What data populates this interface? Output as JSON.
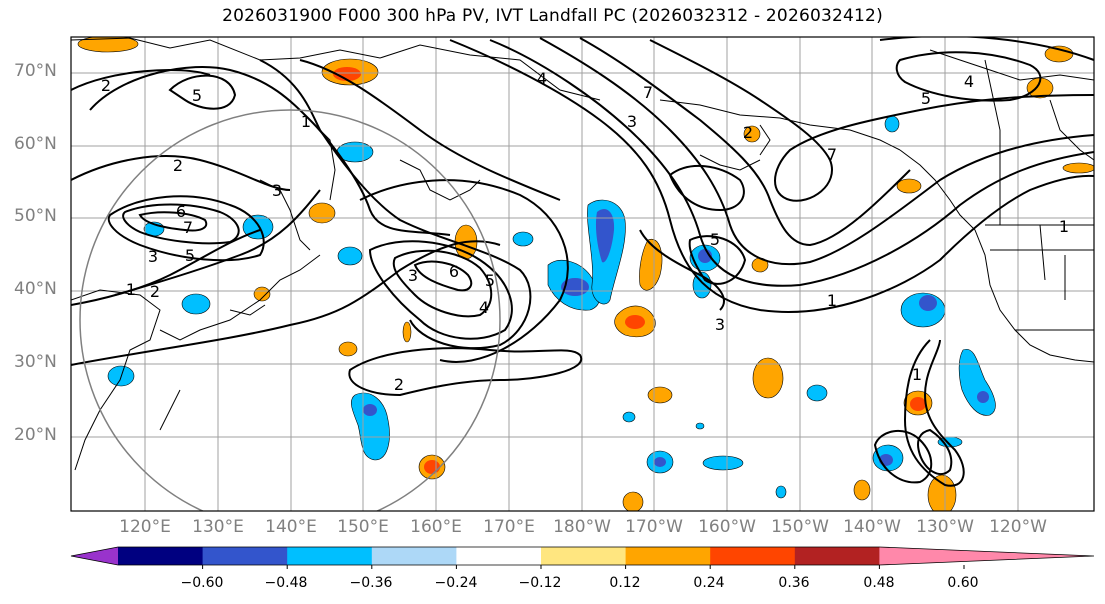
{
  "title": "2026031900 F000 300 hPa PV, IVT Landfall PC (2026032312 - 2026032412)",
  "lat_labels": [
    "70°N",
    "60°N",
    "50°N",
    "40°N",
    "30°N",
    "20°N"
  ],
  "lon_labels": [
    "120°E",
    "130°E",
    "140°E",
    "150°E",
    "160°E",
    "170°E",
    "180°W",
    "170°W",
    "160°W",
    "150°W",
    "140°W",
    "130°W",
    "120°W"
  ],
  "colorbar": {
    "tick_labels": [
      "−0.60",
      "−0.48",
      "−0.36",
      "−0.24",
      "−0.12",
      "0.12",
      "0.24",
      "0.36",
      "0.48",
      "0.60"
    ],
    "colors": [
      "#9933cc",
      "#000080",
      "#3355cc",
      "#00bfff",
      "#add8f7",
      "#ffffff",
      "#ffe680",
      "#ffa500",
      "#ff4500",
      "#b22222",
      "#ff88aa"
    ]
  },
  "contour_labels": [
    "2",
    "5",
    "1",
    "2",
    "6",
    "7",
    "3",
    "5",
    "3",
    "1",
    "2",
    "6",
    "3",
    "5",
    "4",
    "2",
    "4",
    "7",
    "3",
    "5",
    "3",
    "1",
    "7",
    "4",
    "5",
    "1",
    "1",
    "2"
  ]
}
